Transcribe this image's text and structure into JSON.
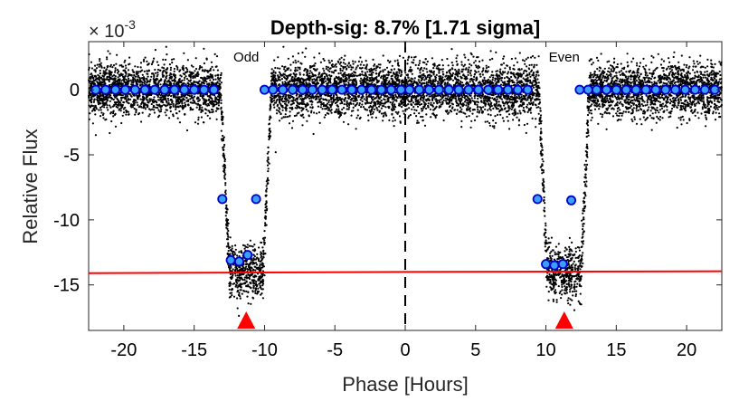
{
  "chart_data": {
    "type": "scatter",
    "title": "Depth-sig: 8.7% [1.71 sigma]",
    "xlabel": "Phase [Hours]",
    "ylabel": "Relative Flux",
    "y_multiplier": "× 10",
    "y_multiplier_exponent": "-3",
    "xlim": [
      -22.5,
      22.5
    ],
    "ylim": [
      -18.5,
      3.7
    ],
    "xticks": [
      -20,
      -15,
      -10,
      -5,
      0,
      5,
      10,
      15,
      20
    ],
    "xtick_labels": [
      "-20",
      "-15",
      "-10",
      "-5",
      "0",
      "5",
      "10",
      "15",
      "20"
    ],
    "yticks": [
      0,
      -5,
      -10,
      -15
    ],
    "ytick_labels": [
      "0",
      "-5",
      "-10",
      "-15"
    ],
    "panel_labels": [
      {
        "text": "Odd",
        "x": -11.3
      },
      {
        "text": "Even",
        "x": 11.3
      }
    ],
    "divider_x": 0,
    "transits": [
      {
        "name": "Odd",
        "center": -11.3,
        "depth": -14.0,
        "half_width_top": 1.8,
        "half_width_bottom": 1.2
      },
      {
        "name": "Even",
        "center": 11.3,
        "depth": -14.0,
        "half_width_top": 1.8,
        "half_width_bottom": 1.2
      }
    ],
    "raw_noise_sigma": 1.0,
    "binned_series": [
      {
        "x": [
          -22.0,
          -21.3,
          -20.6,
          -19.9,
          -19.2,
          -18.5,
          -17.8,
          -17.1,
          -16.4,
          -15.7,
          -15.0,
          -14.3,
          -13.6,
          -13.0,
          -12.4,
          -11.8,
          -11.2,
          -10.6,
          -10.0,
          -9.4,
          -8.7,
          -8.0,
          -7.3,
          -6.6,
          -5.9,
          -5.2,
          -4.5,
          -3.8,
          -3.1,
          -2.4,
          -1.7,
          -1.0,
          -0.3
        ],
        "y": [
          0.0,
          0.0,
          0.0,
          0.0,
          0.0,
          0.0,
          0.0,
          0.0,
          0.0,
          0.0,
          0.0,
          0.0,
          0.0,
          -8.4,
          -13.1,
          -13.2,
          -12.7,
          -8.4,
          0.0,
          0.0,
          0.0,
          0.0,
          0.0,
          0.0,
          0.0,
          0.0,
          0.0,
          0.0,
          0.0,
          0.0,
          0.0,
          0.0,
          0.0
        ]
      },
      {
        "x": [
          0.3,
          1.0,
          1.7,
          2.4,
          3.1,
          3.8,
          4.5,
          5.2,
          5.9,
          6.6,
          7.3,
          8.0,
          8.7,
          9.4,
          10.0,
          10.6,
          11.2,
          11.8,
          12.4,
          13.0,
          13.6,
          14.3,
          15.0,
          15.7,
          16.4,
          17.1,
          17.8,
          18.5,
          19.2,
          19.9,
          20.6,
          21.3,
          22.0
        ],
        "y": [
          0.0,
          0.0,
          0.0,
          0.0,
          0.0,
          0.0,
          0.0,
          0.0,
          0.0,
          0.0,
          0.0,
          0.0,
          0.0,
          -8.4,
          -13.4,
          -13.5,
          -13.4,
          -8.5,
          0.0,
          0.0,
          0.0,
          0.0,
          0.0,
          0.0,
          0.0,
          0.0,
          0.0,
          0.0,
          0.0,
          0.0,
          0.0,
          0.0,
          0.0
        ]
      }
    ],
    "depth_lines": [
      {
        "x": [
          -22.5,
          0
        ],
        "y": [
          -14.1,
          -14.0
        ]
      },
      {
        "x": [
          0,
          22.5
        ],
        "y": [
          -14.0,
          -13.95
        ]
      }
    ],
    "markers": [
      {
        "x": -11.3,
        "label": "odd-transit-marker"
      },
      {
        "x": 11.3,
        "label": "even-transit-marker"
      }
    ],
    "colors": {
      "raw_points": "#000000",
      "binned_fill": "#3aa0ff",
      "binned_edge": "#0000cc",
      "depth_line": "#ff0000",
      "marker": "#ff0000",
      "divider": "#000000"
    },
    "grid": false
  }
}
